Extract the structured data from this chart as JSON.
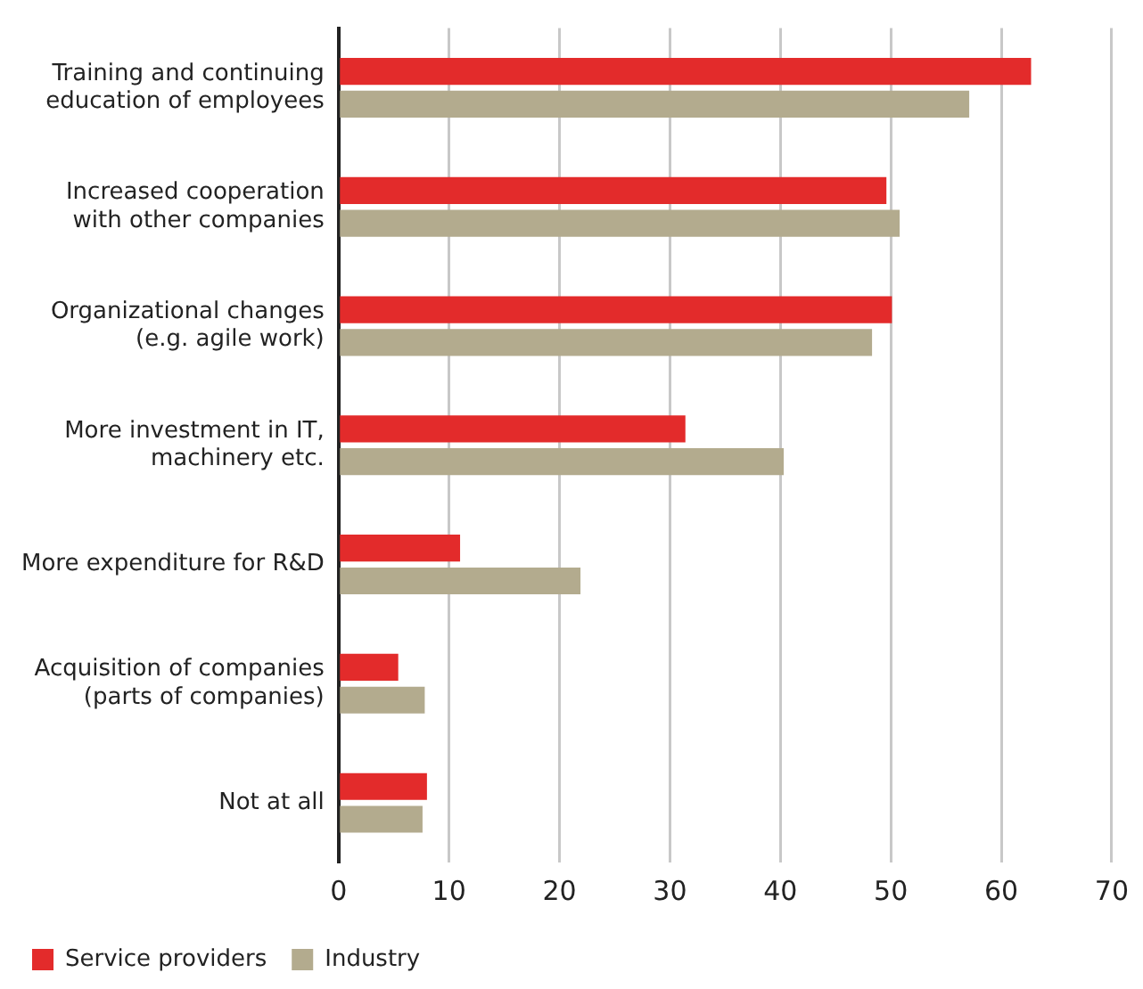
{
  "chart_data": {
    "type": "bar",
    "orientation": "horizontal",
    "categories": [
      [
        "Training and continuing",
        "education of employees"
      ],
      [
        "Increased cooperation",
        "with other companies"
      ],
      [
        "Organizational changes",
        "(e.g. agile work)"
      ],
      [
        "More investment in IT,",
        "machinery etc."
      ],
      "More expenditure for R&D",
      [
        "Acquisition of companies",
        "(parts of companies)"
      ],
      "Not at all"
    ],
    "series": [
      {
        "name": "Service providers",
        "color": "#e32b2b",
        "values": [
          62.7,
          49.6,
          50.1,
          31.4,
          11.0,
          5.4,
          8.0
        ]
      },
      {
        "name": "Industry",
        "color": "#b3ab8e",
        "values": [
          57.1,
          50.8,
          48.3,
          40.3,
          21.9,
          7.8,
          7.6
        ]
      }
    ],
    "xlim": [
      0,
      70
    ],
    "xticks": [
      0,
      10,
      20,
      30,
      40,
      50,
      60,
      70
    ],
    "grid": "x",
    "legend": "bottom left"
  }
}
